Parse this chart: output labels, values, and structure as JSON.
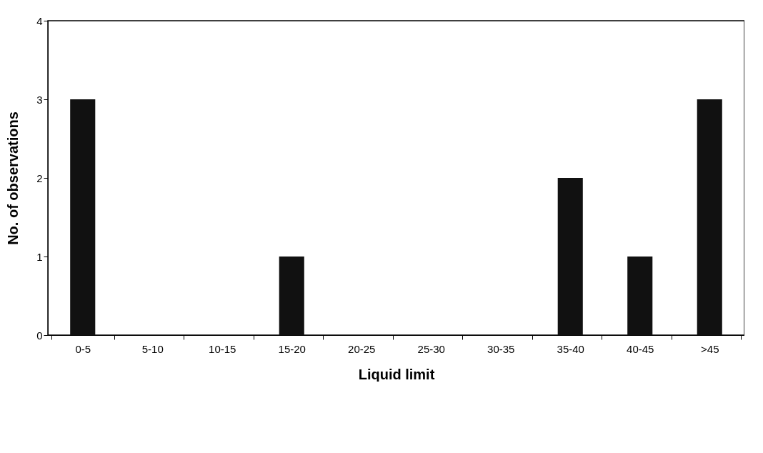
{
  "chart_data": {
    "type": "bar",
    "xlabel": "Liquid limit",
    "ylabel": "No. of observations",
    "categories": [
      "0-5",
      "5-10",
      "10-15",
      "15-20",
      "20-25",
      "25-30",
      "30-35",
      "35-40",
      "40-45",
      ">45"
    ],
    "values": [
      3,
      0,
      0,
      1,
      0,
      0,
      0,
      2,
      1,
      3
    ],
    "color": "#111111",
    "ylim": [
      0,
      4
    ],
    "yticks": [
      0,
      1,
      2,
      3,
      4
    ],
    "grid": false
  }
}
